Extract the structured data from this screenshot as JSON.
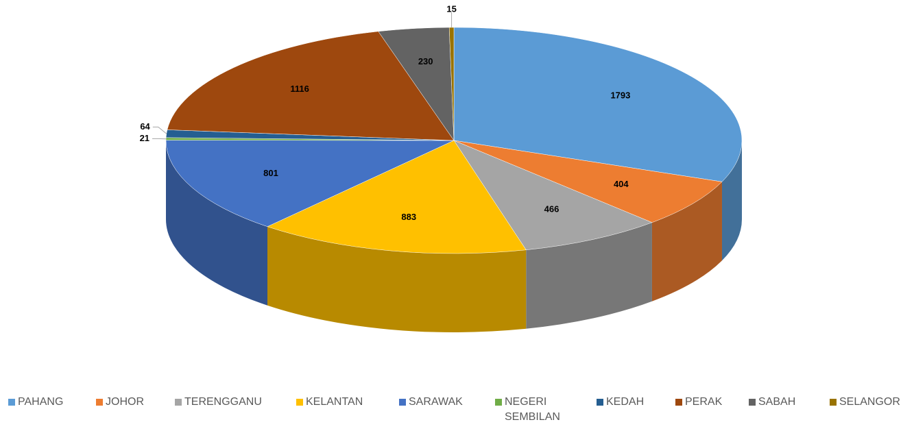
{
  "chart_data": {
    "type": "pie3d",
    "categories": [
      "PAHANG",
      "JOHOR",
      "TERENGGANU",
      "KELANTAN",
      "SARAWAK",
      "NEGERI SEMBILAN",
      "KEDAH",
      "PERAK",
      "SABAH",
      "SELANGOR"
    ],
    "values": [
      1793,
      404,
      466,
      883,
      801,
      21,
      64,
      1116,
      230,
      15
    ],
    "colors": [
      "#5b9bd5",
      "#ed7d31",
      "#a5a5a5",
      "#ffc000",
      "#4472c4",
      "#70ad47",
      "#255e91",
      "#9e480e",
      "#636363",
      "#997300"
    ],
    "legend": "bottom"
  }
}
